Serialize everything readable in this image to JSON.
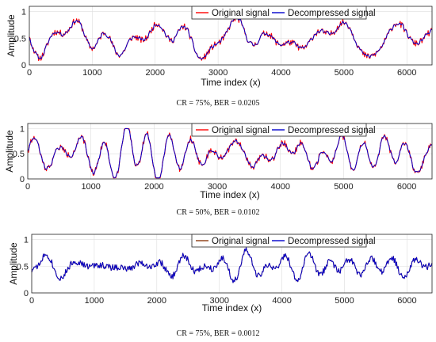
{
  "chart_data": [
    {
      "type": "line",
      "caption": "CR = 75%, BER = 0.0205",
      "xlabel": "Time index (x)",
      "ylabel": "Amplitude",
      "xlim": [
        0,
        6400
      ],
      "ylim": [
        0,
        1.1
      ],
      "xticks": [
        "0",
        "1000",
        "2000",
        "3000",
        "4000",
        "5000",
        "6000"
      ],
      "yticks": [
        "0",
        "0.5",
        "1"
      ],
      "grid": true,
      "legend": "top-right",
      "series": [
        {
          "name": "Original signal",
          "color": "#ff0000",
          "seed": 11
        },
        {
          "name": "Decompressed signal",
          "color": "#0000cc",
          "seed": 11,
          "smooth": true
        }
      ]
    },
    {
      "type": "line",
      "caption": "CR = 50%, BER = 0.0102",
      "xlabel": "Time index (x)",
      "ylabel": "Amplitude",
      "xlim": [
        0,
        6400
      ],
      "ylim": [
        0,
        1.1
      ],
      "xticks": [
        "0",
        "1000",
        "2000",
        "3000",
        "4000",
        "5000",
        "6000"
      ],
      "yticks": [
        "0",
        "0.5",
        "1"
      ],
      "grid": true,
      "legend": "top-right",
      "series": [
        {
          "name": "Original signal",
          "color": "#ff0000",
          "seed": 22
        },
        {
          "name": "Decompressed signal",
          "color": "#0000cc",
          "seed": 22,
          "smooth": true
        }
      ]
    },
    {
      "type": "line",
      "caption": "CR = 75%, BER = 0.0012",
      "xlabel": "Time index (x)",
      "ylabel": "Amplitude",
      "xlim": [
        0,
        6400
      ],
      "ylim": [
        0,
        1.1
      ],
      "xticks": [
        "0",
        "1000",
        "2000",
        "3000",
        "4000",
        "5000",
        "6000"
      ],
      "yticks": [
        "0",
        "0.5",
        "1"
      ],
      "grid": true,
      "legend": "top-right",
      "series": [
        {
          "name": "Original signal",
          "color": "#8b3a0f",
          "seed": 33
        },
        {
          "name": "Decompressed signal",
          "color": "#0000cc",
          "seed": 33,
          "smooth": false
        }
      ]
    }
  ]
}
